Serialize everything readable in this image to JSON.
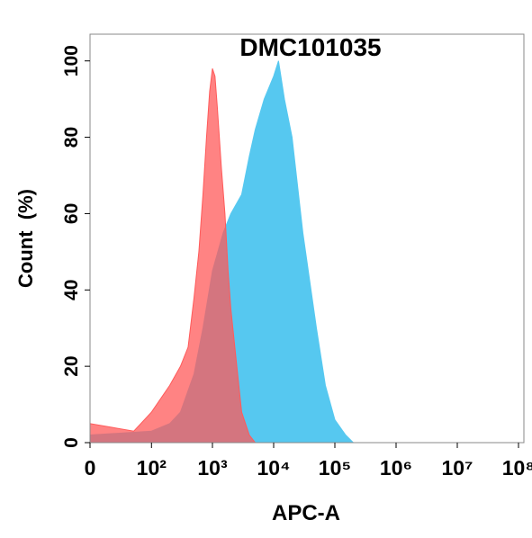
{
  "chart_data": {
    "type": "area",
    "title": "DMC101035",
    "x_label": "APC-A",
    "y_label": "Count  (%)",
    "x_scale": "biexponential",
    "xlim": [
      0,
      100000000
    ],
    "xticks": [
      {
        "value": 0,
        "label": "0"
      },
      {
        "value": 100,
        "label": "10²"
      },
      {
        "value": 1000,
        "label": "10³"
      },
      {
        "value": 10000,
        "label": "10⁴"
      },
      {
        "value": 100000,
        "label": "10⁵"
      },
      {
        "value": 1000000,
        "label": "10⁶"
      },
      {
        "value": 10000000,
        "label": "10⁷"
      },
      {
        "value": 100000000,
        "label": "10⁸"
      }
    ],
    "ylim": [
      0,
      107
    ],
    "yticks": [
      0,
      20,
      40,
      60,
      80,
      100
    ],
    "series": [
      {
        "color": "#56c8f0",
        "x": [
          0,
          100,
          200,
          300,
          500,
          700,
          1000,
          1500,
          2000,
          3000,
          4000,
          5000,
          7000,
          10000,
          12000,
          15000,
          20000,
          30000,
          50000,
          70000,
          100000,
          150000,
          200000
        ],
        "values": [
          2,
          3,
          5,
          8,
          18,
          30,
          45,
          55,
          60,
          65,
          75,
          82,
          90,
          96,
          100,
          90,
          80,
          55,
          30,
          15,
          6,
          2,
          0
        ]
      },
      {
        "color": "#ff5a5a",
        "x": [
          0,
          50,
          100,
          200,
          300,
          400,
          500,
          600,
          700,
          800,
          900,
          1000,
          1100,
          1200,
          1400,
          1600,
          1800,
          2000,
          2500,
          3000,
          4000,
          5000
        ],
        "values": [
          5,
          3,
          8,
          15,
          20,
          25,
          38,
          50,
          65,
          80,
          92,
          98,
          96,
          88,
          72,
          60,
          45,
          35,
          20,
          8,
          2,
          0
        ]
      }
    ]
  }
}
